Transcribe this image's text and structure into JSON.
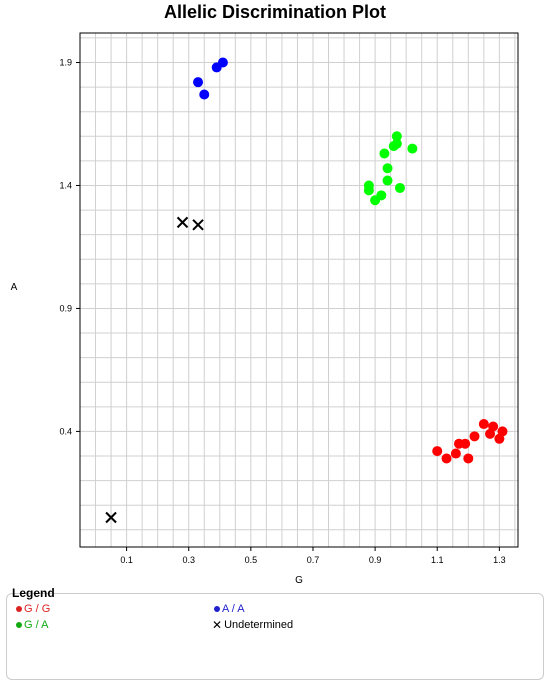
{
  "chart_data": {
    "type": "scatter",
    "title": "Allelic Discrimination Plot",
    "xlabel": "G",
    "ylabel": "A",
    "xlim": [
      -0.05,
      1.36
    ],
    "ylim": [
      -0.07,
      2.02
    ],
    "x_ticks": [
      0.1,
      0.3,
      0.5,
      0.7,
      0.9,
      1.1,
      1.3
    ],
    "y_ticks": [
      0.4,
      0.9,
      1.4,
      1.9
    ],
    "grid": true,
    "series": [
      {
        "name": "G / G",
        "color": "#ff0000",
        "marker": "circle",
        "points": [
          [
            1.1,
            0.32
          ],
          [
            1.13,
            0.29
          ],
          [
            1.16,
            0.31
          ],
          [
            1.17,
            0.35
          ],
          [
            1.19,
            0.35
          ],
          [
            1.2,
            0.29
          ],
          [
            1.22,
            0.38
          ],
          [
            1.25,
            0.43
          ],
          [
            1.27,
            0.39
          ],
          [
            1.28,
            0.42
          ],
          [
            1.3,
            0.37
          ],
          [
            1.31,
            0.4
          ]
        ]
      },
      {
        "name": "A / A",
        "color": "#0000ff",
        "marker": "circle",
        "points": [
          [
            0.33,
            1.82
          ],
          [
            0.35,
            1.77
          ],
          [
            0.39,
            1.88
          ],
          [
            0.41,
            1.9
          ]
        ]
      },
      {
        "name": "G / A",
        "color": "#00ff00",
        "marker": "circle",
        "points": [
          [
            0.88,
            1.4
          ],
          [
            0.88,
            1.38
          ],
          [
            0.9,
            1.34
          ],
          [
            0.92,
            1.36
          ],
          [
            0.93,
            1.53
          ],
          [
            0.94,
            1.47
          ],
          [
            0.94,
            1.42
          ],
          [
            0.96,
            1.56
          ],
          [
            0.97,
            1.57
          ],
          [
            0.97,
            1.6
          ],
          [
            0.98,
            1.39
          ],
          [
            1.02,
            1.55
          ]
        ]
      },
      {
        "name": "Undetermined",
        "color": "#000000",
        "marker": "x",
        "points": [
          [
            0.05,
            0.05
          ],
          [
            0.28,
            1.25
          ],
          [
            0.33,
            1.24
          ]
        ]
      }
    ]
  },
  "legend": {
    "title": "Legend",
    "entries": [
      {
        "label": "G / G",
        "color": "#dd2222",
        "marker": "dot"
      },
      {
        "label": "A / A",
        "color": "#2222cc",
        "marker": "dot"
      },
      {
        "label": "G / A",
        "color": "#11aa11",
        "marker": "dot"
      },
      {
        "label": "Undetermined",
        "color": "#000000",
        "marker": "x"
      }
    ]
  }
}
